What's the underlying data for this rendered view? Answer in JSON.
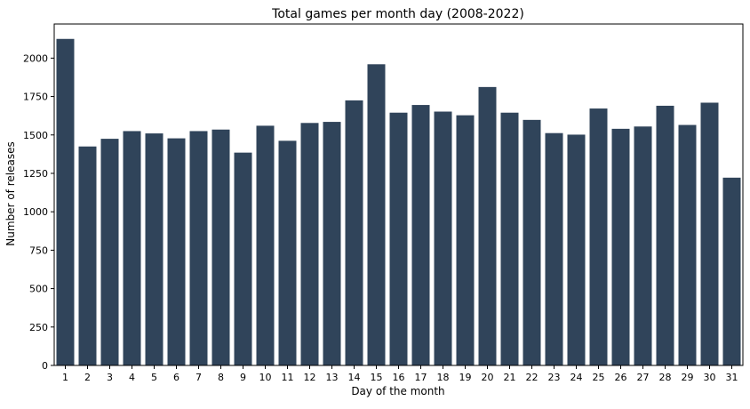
{
  "chart_data": {
    "type": "bar",
    "title": "Total games per month day (2008-2022)",
    "xlabel": "Day of the month",
    "ylabel": "Number of releases",
    "categories": [
      "1",
      "2",
      "3",
      "4",
      "5",
      "6",
      "7",
      "8",
      "9",
      "10",
      "11",
      "12",
      "13",
      "14",
      "15",
      "16",
      "17",
      "18",
      "19",
      "20",
      "21",
      "22",
      "23",
      "24",
      "25",
      "26",
      "27",
      "28",
      "29",
      "30",
      "31"
    ],
    "values": [
      2125,
      1425,
      1475,
      1525,
      1510,
      1478,
      1525,
      1535,
      1385,
      1560,
      1462,
      1578,
      1585,
      1725,
      1960,
      1645,
      1695,
      1652,
      1628,
      1812,
      1645,
      1598,
      1512,
      1502,
      1672,
      1540,
      1555,
      1690,
      1565,
      1710,
      1222
    ],
    "ylim": [
      0,
      2222
    ],
    "yticks": [
      0,
      250,
      500,
      750,
      1000,
      1250,
      1500,
      1750,
      2000
    ],
    "grid": false,
    "bar_color": "#30445a"
  }
}
